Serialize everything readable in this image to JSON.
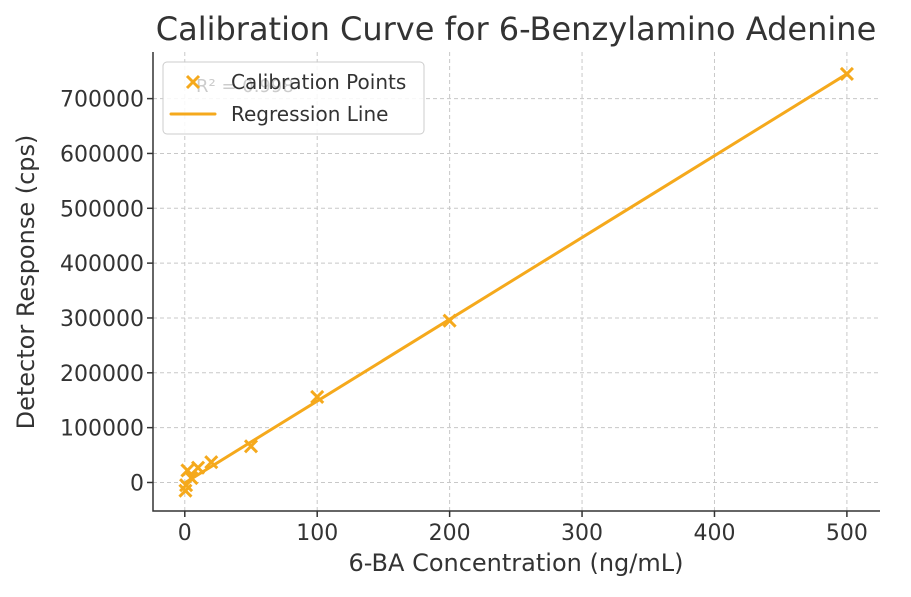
{
  "chart_data": {
    "type": "scatter",
    "title": "Calibration Curve for 6-Benzylamino Adenine",
    "xlabel": "6-BA Concentration (ng/mL)",
    "ylabel": "Detector Response (cps)",
    "xlim": [
      -24,
      525
    ],
    "ylim": [
      -52000,
      785000
    ],
    "xticks": [
      0,
      100,
      200,
      300,
      400,
      500
    ],
    "yticks": [
      0,
      100000,
      200000,
      300000,
      400000,
      500000,
      600000,
      700000
    ],
    "grid": true,
    "legend_position": "top-left",
    "annotation": "R² = 0.998",
    "color": "#f5a91c",
    "series": [
      {
        "name": "Calibration Points",
        "kind": "scatter",
        "marker": "x",
        "x": [
          0.5,
          1,
          2,
          5,
          10,
          20,
          50,
          100,
          200,
          500
        ],
        "y": [
          -15000,
          -5000,
          22000,
          8000,
          27000,
          37000,
          66000,
          156000,
          295000,
          745000
        ]
      },
      {
        "name": "Regression Line",
        "kind": "line",
        "x": [
          0.5,
          500
        ],
        "y": [
          0,
          745000
        ]
      }
    ]
  }
}
